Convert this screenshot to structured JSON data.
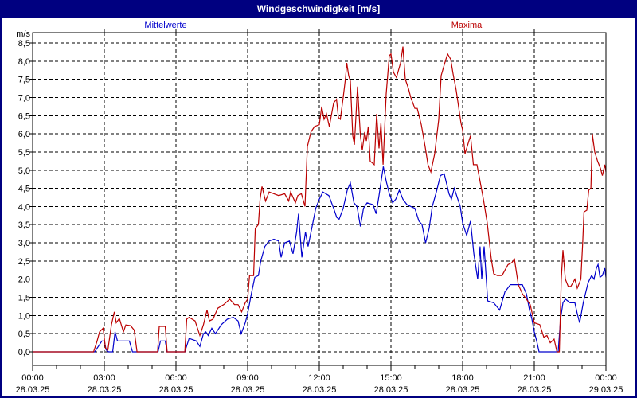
{
  "window": {
    "title": "Windgeschwindigkeit [m/s]",
    "title_bg": "#000080",
    "title_fg": "#ffffff"
  },
  "legend": {
    "mean": {
      "label": "Mittelwerte",
      "color": "#0000cc"
    },
    "max": {
      "label": "Maxima",
      "color": "#bb0000"
    }
  },
  "chart_data": {
    "type": "line",
    "title": "Windgeschwindigkeit [m/s]",
    "ylabel": "m/s",
    "xlabel": "",
    "ylim": [
      0,
      8.5
    ],
    "y_tick_step": 0.5,
    "y_tick_labels": [
      "0,0",
      "0,5",
      "1,0",
      "1,5",
      "2,0",
      "2,5",
      "3,0",
      "3,5",
      "4,0",
      "4,5",
      "5,0",
      "5,5",
      "6,0",
      "6,5",
      "7,0",
      "7,5",
      "8,0",
      "8,5"
    ],
    "x_axis": {
      "start_hour": 0,
      "end_hour": 24,
      "major_tick_every_hours": 3,
      "minor_tick_every_hours": 1,
      "grid_hours": [
        3,
        6,
        9,
        12,
        15,
        18,
        21
      ]
    },
    "x_tick_time_labels": [
      "00:00",
      "03:00",
      "06:00",
      "09:00",
      "12:00",
      "15:00",
      "18:00",
      "21:00",
      "00:00"
    ],
    "x_tick_date_labels": [
      "28.03.25",
      "28.03.25",
      "28.03.25",
      "28.03.25",
      "28.03.25",
      "28.03.25",
      "28.03.25",
      "28.03.25",
      "29.03.25"
    ],
    "grid": "dashed",
    "legend_position": "top",
    "series": [
      {
        "name": "Mittelwerte",
        "color": "#0000cc",
        "points_hour_value": [
          [
            0,
            0
          ],
          [
            2.6,
            0
          ],
          [
            2.75,
            0.15
          ],
          [
            2.9,
            0.3
          ],
          [
            3.0,
            0.3
          ],
          [
            3.08,
            0.05
          ],
          [
            3.18,
            0
          ],
          [
            3.35,
            0
          ],
          [
            3.45,
            0.55
          ],
          [
            3.55,
            0.3
          ],
          [
            3.65,
            0.3
          ],
          [
            4.05,
            0.3
          ],
          [
            4.18,
            0
          ],
          [
            5.25,
            0
          ],
          [
            5.35,
            0.3
          ],
          [
            5.55,
            0.3
          ],
          [
            5.63,
            0
          ],
          [
            6.37,
            0
          ],
          [
            6.55,
            0.37
          ],
          [
            6.85,
            0.3
          ],
          [
            7.0,
            0.15
          ],
          [
            7.15,
            0.5
          ],
          [
            7.25,
            0.55
          ],
          [
            7.35,
            0.45
          ],
          [
            7.5,
            0.65
          ],
          [
            7.65,
            0.5
          ],
          [
            7.9,
            0.75
          ],
          [
            8.15,
            0.9
          ],
          [
            8.4,
            0.95
          ],
          [
            8.6,
            0.85
          ],
          [
            8.73,
            0.5
          ],
          [
            8.9,
            0.8
          ],
          [
            9.0,
            1.05
          ],
          [
            9.17,
            1.65
          ],
          [
            9.3,
            2.05
          ],
          [
            9.45,
            2.1
          ],
          [
            9.55,
            2.5
          ],
          [
            9.72,
            2.9
          ],
          [
            9.9,
            3.05
          ],
          [
            10.1,
            3.1
          ],
          [
            10.3,
            3.05
          ],
          [
            10.4,
            2.6
          ],
          [
            10.55,
            3.0
          ],
          [
            10.75,
            3.05
          ],
          [
            10.9,
            2.7
          ],
          [
            11.05,
            3.3
          ],
          [
            11.13,
            3.8
          ],
          [
            11.27,
            2.6
          ],
          [
            11.42,
            3.3
          ],
          [
            11.53,
            2.9
          ],
          [
            11.7,
            3.45
          ],
          [
            11.85,
            3.95
          ],
          [
            12.0,
            4.2
          ],
          [
            12.15,
            4.4
          ],
          [
            12.4,
            4.3
          ],
          [
            12.6,
            3.95
          ],
          [
            12.73,
            3.7
          ],
          [
            12.83,
            3.65
          ],
          [
            13.0,
            3.95
          ],
          [
            13.17,
            4.45
          ],
          [
            13.3,
            4.65
          ],
          [
            13.45,
            4.1
          ],
          [
            13.58,
            4.0
          ],
          [
            13.72,
            3.45
          ],
          [
            13.85,
            3.95
          ],
          [
            14.0,
            4.1
          ],
          [
            14.25,
            4.05
          ],
          [
            14.38,
            3.8
          ],
          [
            14.5,
            4.3
          ],
          [
            14.68,
            5.1
          ],
          [
            14.8,
            4.7
          ],
          [
            14.93,
            4.35
          ],
          [
            15.07,
            4.1
          ],
          [
            15.2,
            4.2
          ],
          [
            15.35,
            4.45
          ],
          [
            15.5,
            4.2
          ],
          [
            15.67,
            4.05
          ],
          [
            15.83,
            4.0
          ],
          [
            16.0,
            3.95
          ],
          [
            16.17,
            3.6
          ],
          [
            16.3,
            3.5
          ],
          [
            16.45,
            3.0
          ],
          [
            16.6,
            3.4
          ],
          [
            16.73,
            4.0
          ],
          [
            16.9,
            4.4
          ],
          [
            17.07,
            4.85
          ],
          [
            17.23,
            4.9
          ],
          [
            17.43,
            4.35
          ],
          [
            17.53,
            4.2
          ],
          [
            17.65,
            4.5
          ],
          [
            17.8,
            4.2
          ],
          [
            17.9,
            4.0
          ],
          [
            18.0,
            3.55
          ],
          [
            18.17,
            3.2
          ],
          [
            18.33,
            3.6
          ],
          [
            18.47,
            2.7
          ],
          [
            18.63,
            2.0
          ],
          [
            18.73,
            2.9
          ],
          [
            18.8,
            2.0
          ],
          [
            18.9,
            2.9
          ],
          [
            19.05,
            1.4
          ],
          [
            19.3,
            1.35
          ],
          [
            19.55,
            1.15
          ],
          [
            19.77,
            1.65
          ],
          [
            20.0,
            1.85
          ],
          [
            20.3,
            1.85
          ],
          [
            20.5,
            1.85
          ],
          [
            20.67,
            1.6
          ],
          [
            20.8,
            1.15
          ],
          [
            20.9,
            0.9
          ],
          [
            21.0,
            0.55
          ],
          [
            21.1,
            0.3
          ],
          [
            21.2,
            0
          ],
          [
            22.0,
            0
          ],
          [
            22.1,
            0.9
          ],
          [
            22.2,
            1.35
          ],
          [
            22.3,
            1.45
          ],
          [
            22.5,
            1.35
          ],
          [
            22.7,
            1.35
          ],
          [
            22.8,
            1.05
          ],
          [
            22.9,
            0.8
          ],
          [
            23.05,
            1.35
          ],
          [
            23.25,
            1.9
          ],
          [
            23.4,
            2.1
          ],
          [
            23.5,
            2.0
          ],
          [
            23.6,
            2.3
          ],
          [
            23.67,
            2.4
          ],
          [
            23.75,
            2.05
          ],
          [
            23.85,
            2.1
          ],
          [
            23.95,
            2.3
          ],
          [
            24.0,
            2.05
          ]
        ]
      },
      {
        "name": "Maxima",
        "color": "#bb0000",
        "points_hour_value": [
          [
            0,
            0
          ],
          [
            2.55,
            0
          ],
          [
            2.7,
            0.3
          ],
          [
            2.8,
            0.55
          ],
          [
            2.95,
            0.65
          ],
          [
            3.05,
            0.1
          ],
          [
            3.15,
            0.05
          ],
          [
            3.3,
            0.75
          ],
          [
            3.42,
            1.1
          ],
          [
            3.5,
            0.8
          ],
          [
            3.63,
            0.92
          ],
          [
            3.8,
            0.55
          ],
          [
            3.9,
            0.74
          ],
          [
            4.1,
            0.72
          ],
          [
            4.25,
            0.6
          ],
          [
            4.37,
            0
          ],
          [
            5.23,
            0
          ],
          [
            5.3,
            0.7
          ],
          [
            5.55,
            0.7
          ],
          [
            5.63,
            0
          ],
          [
            6.37,
            0
          ],
          [
            6.45,
            0.9
          ],
          [
            6.55,
            0.95
          ],
          [
            6.8,
            0.85
          ],
          [
            7.0,
            0.45
          ],
          [
            7.15,
            0.75
          ],
          [
            7.3,
            1.15
          ],
          [
            7.4,
            0.85
          ],
          [
            7.55,
            0.9
          ],
          [
            7.75,
            1.2
          ],
          [
            8.0,
            1.3
          ],
          [
            8.25,
            1.45
          ],
          [
            8.45,
            1.3
          ],
          [
            8.6,
            1.3
          ],
          [
            8.75,
            1.1
          ],
          [
            8.9,
            1.35
          ],
          [
            9.0,
            1.45
          ],
          [
            9.08,
            2.1
          ],
          [
            9.25,
            2.1
          ],
          [
            9.32,
            3.4
          ],
          [
            9.45,
            3.5
          ],
          [
            9.52,
            4.2
          ],
          [
            9.6,
            4.55
          ],
          [
            9.75,
            4.15
          ],
          [
            9.9,
            4.4
          ],
          [
            10.1,
            4.35
          ],
          [
            10.3,
            4.3
          ],
          [
            10.55,
            4.35
          ],
          [
            10.72,
            4.15
          ],
          [
            10.8,
            4.4
          ],
          [
            11.0,
            4.1
          ],
          [
            11.1,
            4.3
          ],
          [
            11.25,
            4.35
          ],
          [
            11.4,
            4.0
          ],
          [
            11.5,
            5.65
          ],
          [
            11.65,
            6.05
          ],
          [
            11.8,
            6.2
          ],
          [
            12.0,
            6.25
          ],
          [
            12.1,
            6.75
          ],
          [
            12.2,
            6.4
          ],
          [
            12.3,
            6.55
          ],
          [
            12.42,
            6.2
          ],
          [
            12.6,
            6.85
          ],
          [
            12.72,
            6.95
          ],
          [
            12.8,
            6.45
          ],
          [
            12.88,
            6.4
          ],
          [
            13.0,
            7.0
          ],
          [
            13.1,
            7.55
          ],
          [
            13.15,
            7.95
          ],
          [
            13.23,
            7.6
          ],
          [
            13.3,
            7.45
          ],
          [
            13.4,
            5.95
          ],
          [
            13.47,
            5.7
          ],
          [
            13.6,
            7.3
          ],
          [
            13.72,
            5.95
          ],
          [
            13.8,
            5.55
          ],
          [
            13.9,
            6.05
          ],
          [
            13.97,
            5.8
          ],
          [
            14.05,
            6.2
          ],
          [
            14.13,
            5.25
          ],
          [
            14.3,
            5.15
          ],
          [
            14.4,
            6.55
          ],
          [
            14.5,
            5.6
          ],
          [
            14.58,
            6.3
          ],
          [
            14.67,
            5.15
          ],
          [
            14.8,
            7.1
          ],
          [
            14.93,
            8.15
          ],
          [
            15.0,
            8.2
          ],
          [
            15.1,
            7.7
          ],
          [
            15.23,
            7.55
          ],
          [
            15.4,
            7.95
          ],
          [
            15.5,
            8.4
          ],
          [
            15.6,
            7.5
          ],
          [
            15.73,
            7.25
          ],
          [
            15.83,
            7.0
          ],
          [
            16.0,
            6.7
          ],
          [
            16.1,
            6.7
          ],
          [
            16.27,
            6.25
          ],
          [
            16.43,
            5.65
          ],
          [
            16.55,
            5.15
          ],
          [
            16.67,
            4.95
          ],
          [
            16.83,
            5.45
          ],
          [
            17.0,
            6.4
          ],
          [
            17.1,
            7.6
          ],
          [
            17.23,
            7.9
          ],
          [
            17.37,
            8.2
          ],
          [
            17.5,
            8.05
          ],
          [
            17.6,
            7.65
          ],
          [
            17.73,
            7.2
          ],
          [
            17.83,
            6.75
          ],
          [
            17.93,
            6.3
          ],
          [
            18.0,
            6.1
          ],
          [
            18.1,
            5.45
          ],
          [
            18.33,
            5.95
          ],
          [
            18.45,
            5.15
          ],
          [
            18.6,
            5.15
          ],
          [
            18.87,
            4.2
          ],
          [
            19.03,
            3.55
          ],
          [
            19.2,
            2.55
          ],
          [
            19.3,
            2.15
          ],
          [
            19.45,
            2.1
          ],
          [
            19.65,
            2.1
          ],
          [
            19.9,
            2.4
          ],
          [
            20.05,
            2.45
          ],
          [
            20.17,
            2.55
          ],
          [
            20.33,
            1.85
          ],
          [
            20.5,
            1.6
          ],
          [
            20.67,
            1.45
          ],
          [
            20.83,
            1.3
          ],
          [
            21.0,
            0.8
          ],
          [
            21.23,
            0.75
          ],
          [
            21.4,
            0.4
          ],
          [
            21.53,
            0.45
          ],
          [
            21.67,
            0.25
          ],
          [
            21.83,
            0.35
          ],
          [
            21.95,
            0
          ],
          [
            22.05,
            0
          ],
          [
            22.13,
            2.0
          ],
          [
            22.2,
            2.8
          ],
          [
            22.3,
            2.0
          ],
          [
            22.42,
            1.8
          ],
          [
            22.53,
            1.8
          ],
          [
            22.7,
            2.0
          ],
          [
            22.8,
            1.75
          ],
          [
            22.95,
            2.0
          ],
          [
            23.03,
            3.05
          ],
          [
            23.08,
            3.85
          ],
          [
            23.2,
            3.9
          ],
          [
            23.28,
            4.45
          ],
          [
            23.37,
            4.5
          ],
          [
            23.43,
            6.0
          ],
          [
            23.53,
            5.5
          ],
          [
            23.65,
            5.25
          ],
          [
            23.77,
            5.05
          ],
          [
            23.85,
            4.85
          ],
          [
            23.95,
            5.15
          ],
          [
            24.0,
            4.95
          ]
        ]
      }
    ]
  }
}
